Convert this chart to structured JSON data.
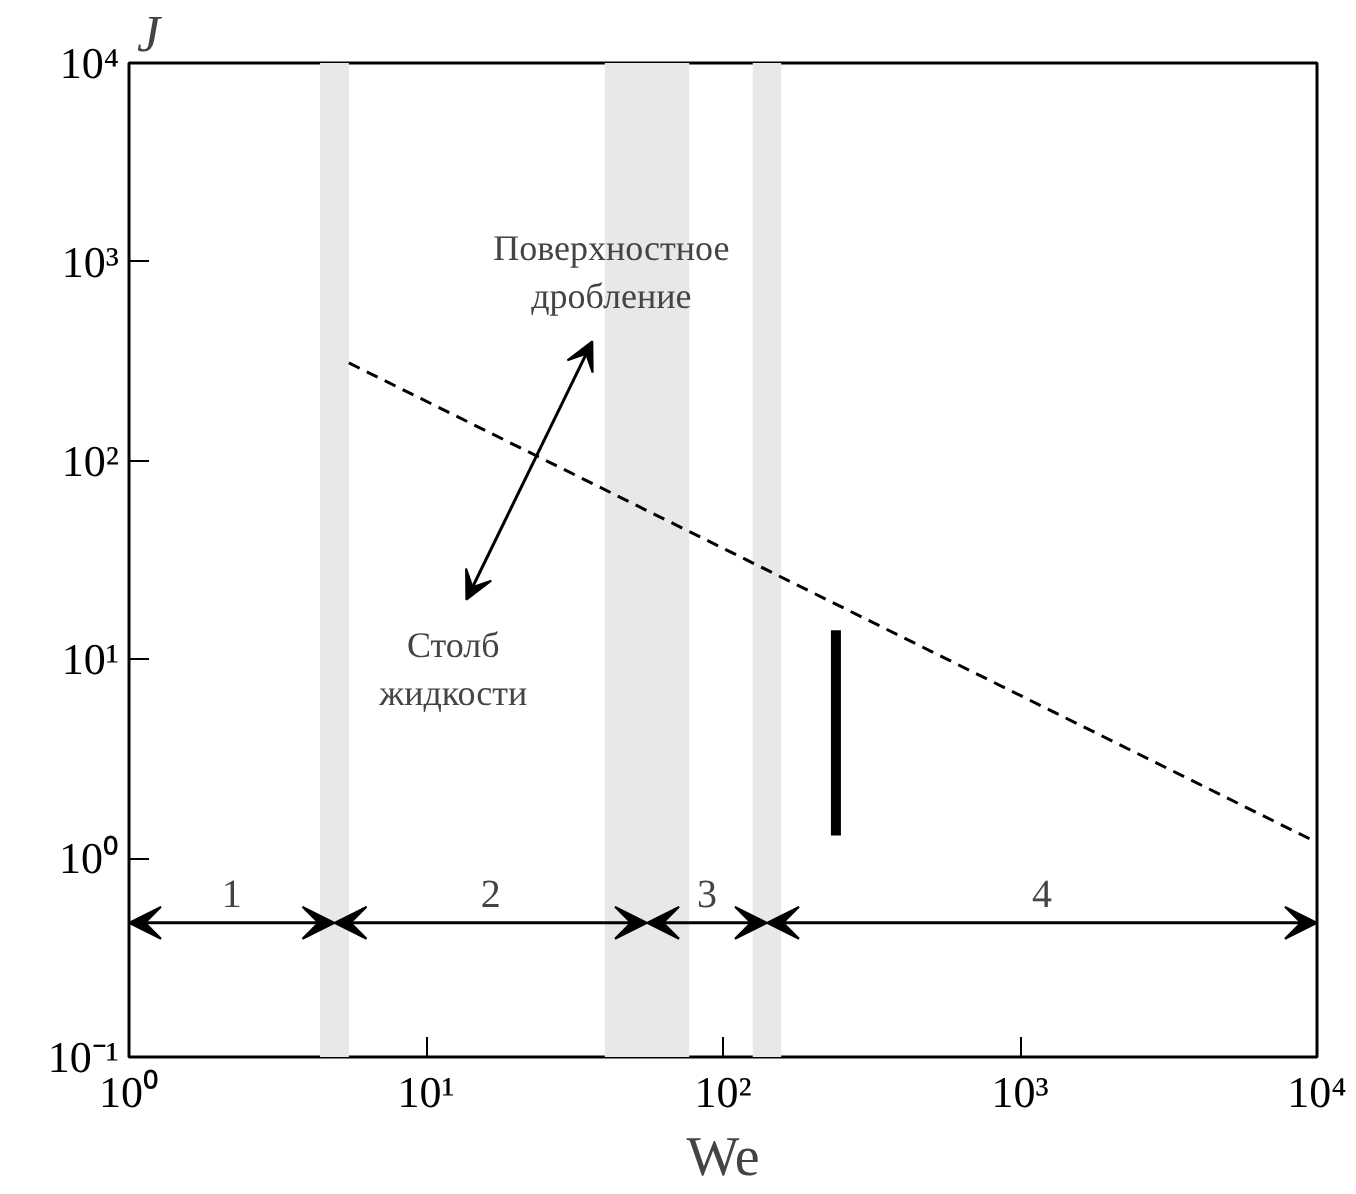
{
  "chart_data": {
    "type": "line",
    "xlabel": "We",
    "ylabel": "J",
    "log": "xy",
    "xlim": [
      1,
      10000
    ],
    "ylim": [
      0.1,
      10000
    ],
    "xticks": [
      {
        "value": 1,
        "label": "10⁰"
      },
      {
        "value": 10,
        "label": "10¹"
      },
      {
        "value": 100,
        "label": "10²"
      },
      {
        "value": 1000,
        "label": "10³"
      },
      {
        "value": 10000,
        "label": "10⁴"
      }
    ],
    "yticks": [
      {
        "value": 0.1,
        "label": "10⁻¹"
      },
      {
        "value": 1,
        "label": "10⁰"
      },
      {
        "value": 10,
        "label": "10¹"
      },
      {
        "value": 100,
        "label": "10²"
      },
      {
        "value": 1000,
        "label": "10³"
      },
      {
        "value": 10000,
        "label": "10⁴"
      }
    ],
    "grid": false,
    "series": [
      {
        "line_style": "dashed",
        "color": "#000000",
        "x": [
          5.5,
          10000
        ],
        "values": [
          310,
          1.2
        ]
      },
      {
        "line_style": "solid",
        "color": "#000000",
        "x": [
          240,
          240
        ],
        "values": [
          14,
          1.3
        ]
      }
    ],
    "bands": [
      {
        "axis": "x",
        "from": 4.4,
        "to": 5.5,
        "color": "#e9e7e7"
      },
      {
        "axis": "x",
        "from": 40,
        "to": 77,
        "color": "#e9e7e7"
      },
      {
        "axis": "x",
        "from": 126,
        "to": 157,
        "color": "#e9e7e7"
      }
    ],
    "annotations": [
      "1",
      "2",
      "3",
      "4",
      "Столб\nжидкости",
      "Поверхностное\nдробление"
    ]
  }
}
